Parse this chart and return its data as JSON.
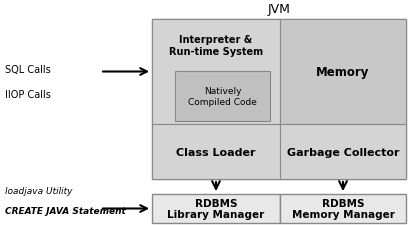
{
  "title": "JVM",
  "bg_color": "#ffffff",
  "fill_light": "#d4d4d4",
  "fill_medium": "#c8c8c8",
  "fill_dark": "#bbbbbb",
  "fill_inner": "#c0c0c0",
  "stroke": "#888888",
  "stroke_lw": 0.8,
  "left_labels_top": [
    "SQL Calls",
    "IIOP Calls"
  ],
  "left_labels_bottom": [
    "loadjava Utility",
    "CREATE JAVA Statement"
  ],
  "fig_w": 4.12,
  "fig_h": 2.26,
  "dpi": 100
}
